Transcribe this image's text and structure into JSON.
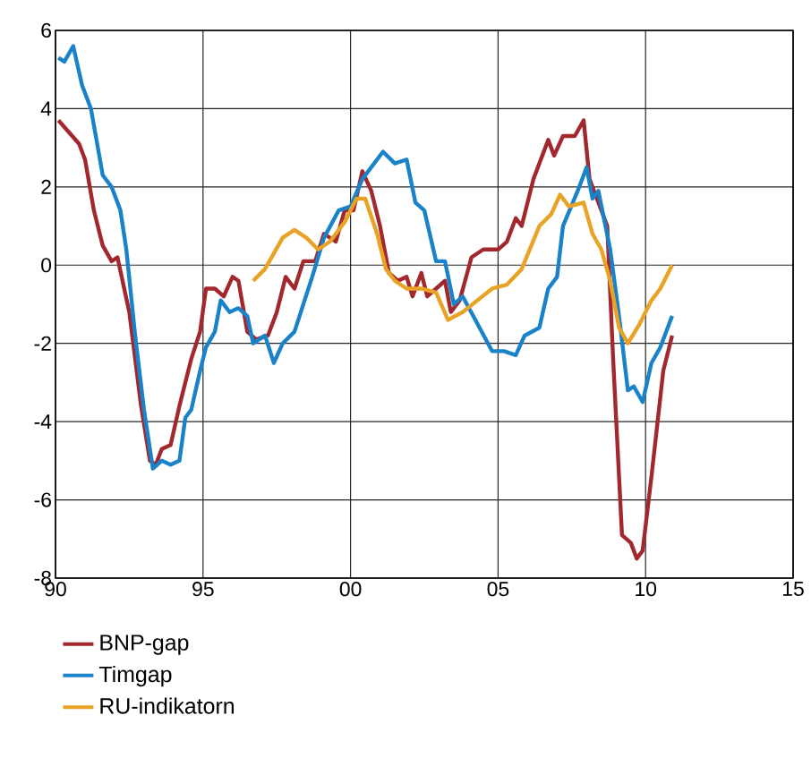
{
  "chart_data": {
    "type": "line",
    "xlim": [
      1990,
      2015
    ],
    "ylim": [
      -8,
      6
    ],
    "xticks": [
      {
        "value": 1990,
        "label": "90"
      },
      {
        "value": 1995,
        "label": "95"
      },
      {
        "value": 2000,
        "label": "00"
      },
      {
        "value": 2005,
        "label": "05"
      },
      {
        "value": 2010,
        "label": "10"
      },
      {
        "value": 2015,
        "label": "15"
      }
    ],
    "yticks": [
      -8,
      -6,
      -4,
      -2,
      0,
      2,
      4,
      6
    ],
    "grid": true,
    "legend": "bottom",
    "line_style": "solid",
    "marker": "none",
    "series": [
      {
        "name": "BNP-gap",
        "color": "#a3282e",
        "x": [
          1990.1,
          1990.8,
          1991.0,
          1991.3,
          1991.6,
          1991.9,
          1992.1,
          1992.5,
          1992.9,
          1993.2,
          1993.4,
          1993.6,
          1993.9,
          1994.2,
          1994.6,
          1994.9,
          1995.1,
          1995.4,
          1995.7,
          1996.0,
          1996.2,
          1996.5,
          1996.8,
          1997.2,
          1997.5,
          1997.8,
          1998.1,
          1998.4,
          1998.8,
          1999.1,
          1999.5,
          1999.8,
          2000.1,
          2000.4,
          2000.7,
          2001.0,
          2001.3,
          2001.6,
          2001.9,
          2002.1,
          2002.4,
          2002.6,
          2002.9,
          2003.2,
          2003.4,
          2003.7,
          2004.1,
          2004.5,
          2005.0,
          2005.3,
          2005.6,
          2005.8,
          2006.2,
          2006.7,
          2006.9,
          2007.2,
          2007.6,
          2007.9,
          2008.1,
          2008.4,
          2008.7,
          2008.9,
          2009.2,
          2009.5,
          2009.7,
          2009.9,
          2010.2,
          2010.6,
          2010.9
        ],
        "values": [
          3.7,
          3.1,
          2.7,
          1.4,
          0.5,
          0.1,
          0.2,
          -1.2,
          -3.6,
          -5.0,
          -5.1,
          -4.7,
          -4.6,
          -3.6,
          -2.4,
          -1.7,
          -0.6,
          -0.6,
          -0.8,
          -0.3,
          -0.4,
          -1.7,
          -1.9,
          -1.8,
          -1.2,
          -0.3,
          -0.6,
          0.1,
          0.1,
          0.8,
          0.6,
          1.4,
          1.4,
          2.4,
          1.9,
          1.0,
          -0.2,
          -0.4,
          -0.3,
          -0.8,
          -0.2,
          -0.8,
          -0.6,
          -0.4,
          -1.2,
          -0.9,
          0.2,
          0.4,
          0.4,
          0.6,
          1.2,
          1.0,
          2.2,
          3.2,
          2.8,
          3.3,
          3.3,
          3.7,
          2.2,
          1.6,
          1.0,
          -2.4,
          -6.9,
          -7.1,
          -7.5,
          -7.3,
          -5.4,
          -2.7,
          -1.8
        ]
      },
      {
        "name": "Timgap",
        "color": "#1a82c8",
        "x": [
          1990.1,
          1990.3,
          1990.6,
          1990.9,
          1991.2,
          1991.6,
          1991.9,
          1992.2,
          1992.4,
          1992.7,
          1993.0,
          1993.3,
          1993.6,
          1993.9,
          1994.2,
          1994.4,
          1994.6,
          1994.9,
          1995.1,
          1995.4,
          1995.6,
          1995.9,
          1996.2,
          1996.5,
          1996.7,
          1997.1,
          1997.4,
          1997.7,
          1998.1,
          1998.4,
          1998.7,
          1999.1,
          1999.6,
          2000.0,
          2000.4,
          2001.1,
          2001.5,
          2001.9,
          2002.2,
          2002.5,
          2002.9,
          2003.2,
          2003.5,
          2003.8,
          2004.3,
          2004.8,
          2005.2,
          2005.6,
          2005.9,
          2006.4,
          2006.7,
          2007.0,
          2007.2,
          2007.7,
          2008.0,
          2008.2,
          2008.4,
          2008.8,
          2009.1,
          2009.4,
          2009.6,
          2009.9,
          2010.2,
          2010.5,
          2010.9
        ],
        "values": [
          5.3,
          5.2,
          5.6,
          4.6,
          4.0,
          2.3,
          2.0,
          1.4,
          0.4,
          -1.8,
          -3.7,
          -5.2,
          -5.0,
          -5.1,
          -5.0,
          -3.9,
          -3.7,
          -2.7,
          -2.1,
          -1.7,
          -0.9,
          -1.2,
          -1.1,
          -1.3,
          -2.0,
          -1.8,
          -2.5,
          -2.0,
          -1.7,
          -1.0,
          -0.3,
          0.7,
          1.4,
          1.5,
          2.2,
          2.9,
          2.6,
          2.7,
          1.6,
          1.4,
          0.1,
          0.1,
          -1.0,
          -0.8,
          -1.5,
          -2.2,
          -2.2,
          -2.3,
          -1.8,
          -1.6,
          -0.6,
          -0.3,
          1.0,
          1.9,
          2.5,
          1.7,
          1.9,
          0.4,
          -1.3,
          -3.2,
          -3.1,
          -3.5,
          -2.5,
          -2.1,
          -1.3
        ]
      },
      {
        "name": "RU-indikatorn",
        "color": "#e8a326",
        "x": [
          1996.7,
          1997.1,
          1997.7,
          1998.1,
          1998.5,
          1998.9,
          1999.3,
          1999.8,
          2000.2,
          2000.5,
          2000.9,
          2001.2,
          2001.5,
          2001.9,
          2002.4,
          2002.9,
          2003.3,
          2003.8,
          2004.3,
          2004.8,
          2005.3,
          2005.8,
          2006.4,
          2006.8,
          2007.1,
          2007.4,
          2007.9,
          2008.2,
          2008.5,
          2008.8,
          2009.1,
          2009.4,
          2009.8,
          2010.2,
          2010.5,
          2010.9
        ],
        "values": [
          -0.4,
          -0.1,
          0.7,
          0.9,
          0.7,
          0.4,
          0.6,
          1.1,
          1.7,
          1.7,
          0.8,
          -0.1,
          -0.4,
          -0.6,
          -0.6,
          -0.7,
          -1.4,
          -1.2,
          -0.9,
          -0.6,
          -0.5,
          -0.1,
          1.0,
          1.3,
          1.8,
          1.5,
          1.6,
          0.8,
          0.4,
          -0.4,
          -1.6,
          -2.0,
          -1.5,
          -0.9,
          -0.6,
          0.0
        ]
      }
    ]
  }
}
